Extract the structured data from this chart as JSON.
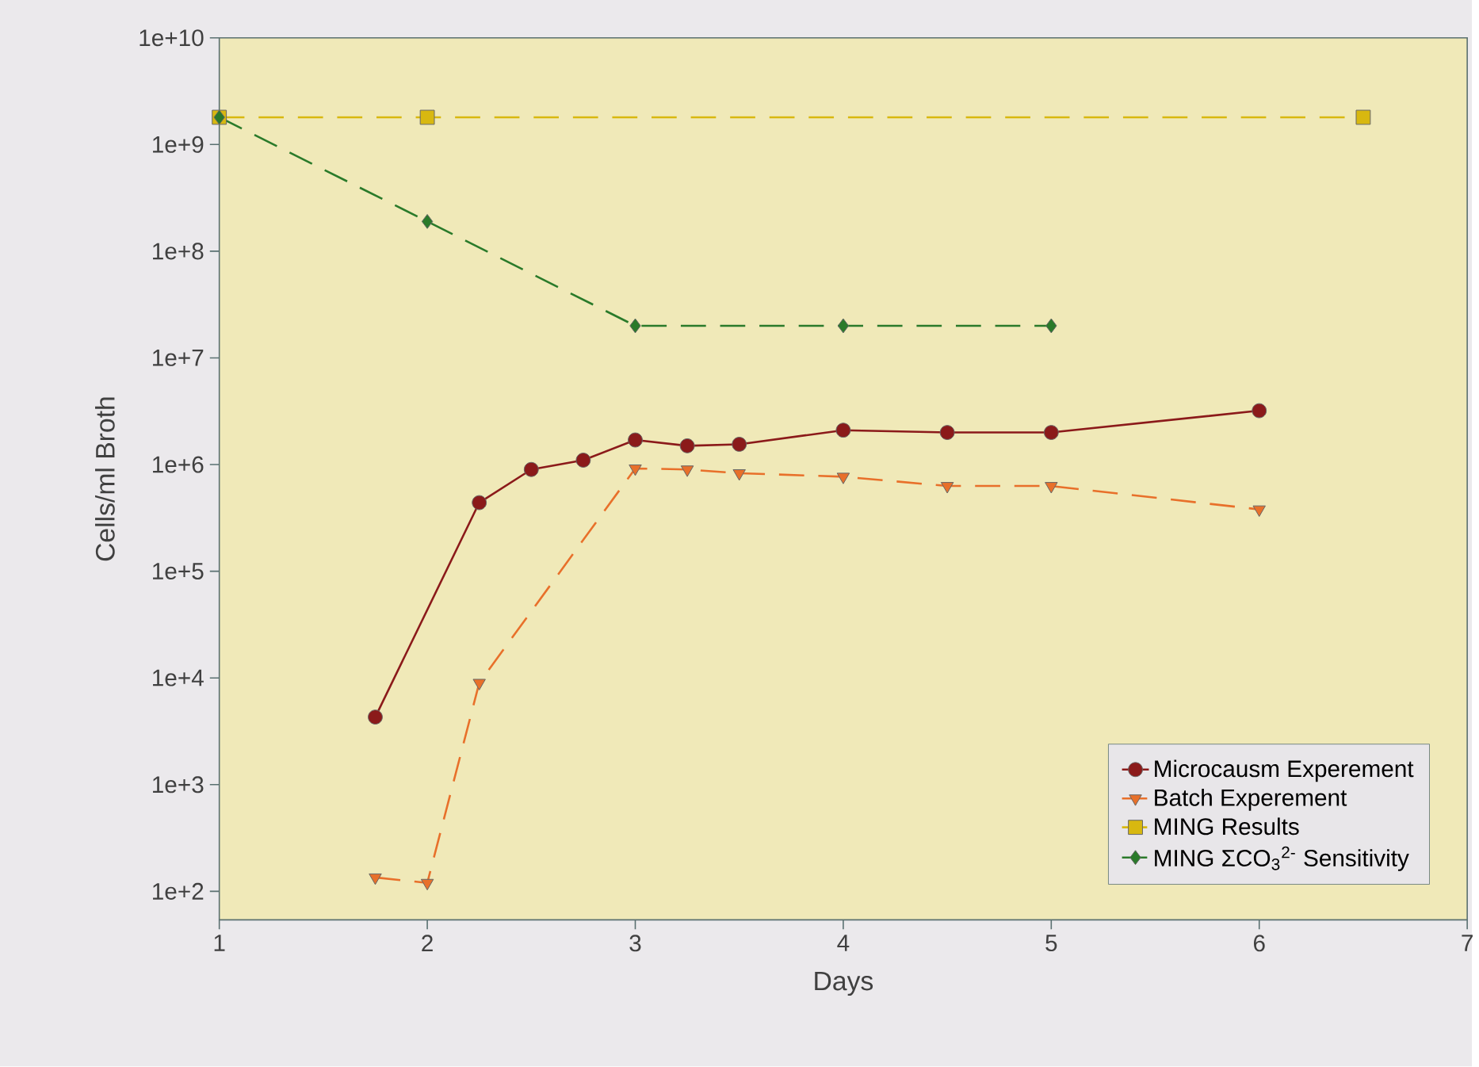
{
  "chart_data": {
    "type": "line",
    "xlabel": "Days",
    "ylabel": "Cells/ml Broth",
    "log": "y",
    "xlim": [
      1,
      7
    ],
    "ylim": [
      54,
      10000000000.0
    ],
    "xticks": [
      1,
      2,
      3,
      4,
      5,
      6,
      7
    ],
    "yticks": [
      {
        "value": 100,
        "label": "1e+2"
      },
      {
        "value": 1000,
        "label": "1e+3"
      },
      {
        "value": 10000,
        "label": "1e+4"
      },
      {
        "value": 100000,
        "label": "1e+5"
      },
      {
        "value": 1000000,
        "label": "1e+6"
      },
      {
        "value": 10000000,
        "label": "1e+7"
      },
      {
        "value": 100000000,
        "label": "1e+8"
      },
      {
        "value": 1000000000,
        "label": "1e+9"
      },
      {
        "value": 10000000000,
        "label": "1e+10"
      }
    ],
    "grid": false,
    "legend": "bottom right",
    "series": [
      {
        "name": "Microcausm Experement",
        "color": "#8b1a1a",
        "marker": "circle",
        "line_style": "solid",
        "x": [
          1.75,
          2.25,
          2.5,
          2.75,
          3,
          3.25,
          3.5,
          4,
          4.5,
          5,
          6
        ],
        "values": [
          4300,
          440000,
          900000,
          1100000,
          1700000,
          1500000,
          1550000,
          2100000,
          2000000,
          2000000,
          3200000
        ]
      },
      {
        "name": "Batch Experement",
        "color": "#e8702a",
        "marker": "triangle",
        "line_style": "dashed",
        "x": [
          1.75,
          2,
          2.25,
          3,
          3.25,
          3.5,
          4,
          4.5,
          5,
          6
        ],
        "values": [
          135,
          120,
          9000,
          920000,
          900000,
          830000,
          770000,
          630000,
          630000,
          380000
        ]
      },
      {
        "name": "MING Results",
        "color": "#d8b810",
        "marker": "square",
        "line_style": "dashed",
        "x": [
          1,
          2,
          6.5
        ],
        "values": [
          1800000000,
          1800000000,
          1800000000
        ]
      },
      {
        "name": "MING ΣCO$_{3}$$^{2-}$ Sensitivity",
        "color": "#2a7a2a",
        "marker": "diamond",
        "line_style": "dashed",
        "x": [
          1,
          2,
          3,
          4,
          5
        ],
        "values": [
          1800000000,
          190000000,
          20000000,
          20000000,
          20000000
        ]
      }
    ]
  }
}
